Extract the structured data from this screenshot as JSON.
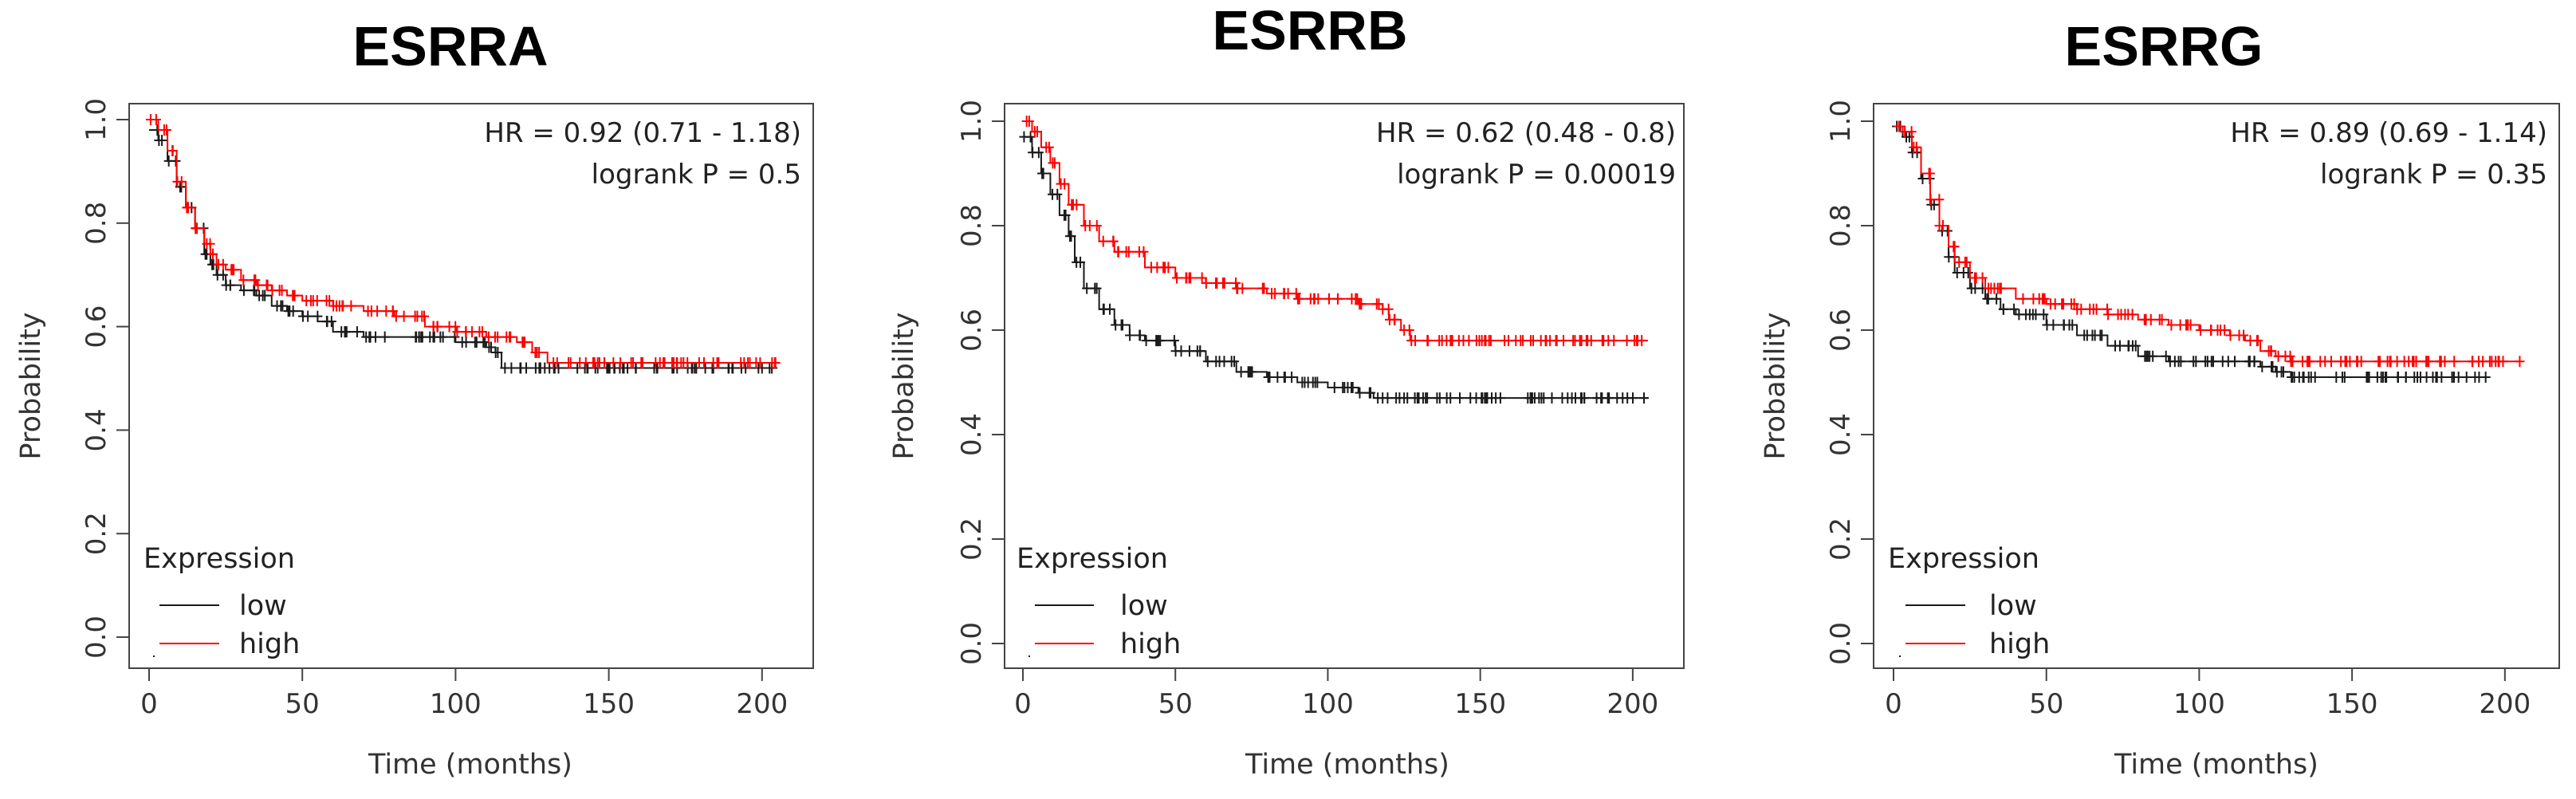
{
  "chart_data": [
    {
      "type": "line",
      "title": "ESRRA",
      "xlabel": "Time (months)",
      "ylabel": "Probability",
      "xlim": [
        0,
        205
      ],
      "ylim": [
        0,
        1.0
      ],
      "xticks": [
        "0",
        "50",
        "100",
        "150",
        "200"
      ],
      "yticks": [
        "0.0",
        "0.2",
        "0.4",
        "0.6",
        "0.8",
        "1.0"
      ],
      "annotations": [
        "HR = 0.92 (0.71 - 1.18)",
        "logrank P = 0.5"
      ],
      "legend": {
        "title": "Expression",
        "position": "bottom-left",
        "entries": [
          "low",
          "high"
        ]
      },
      "series": [
        {
          "name": "low",
          "color": "#1a1a1a",
          "x": [
            0,
            3,
            6,
            9,
            12,
            15,
            18,
            20,
            22,
            25,
            30,
            35,
            40,
            45,
            50,
            55,
            60,
            70,
            80,
            90,
            100,
            110,
            113,
            115,
            130,
            150,
            170,
            190,
            205
          ],
          "y": [
            0.98,
            0.96,
            0.92,
            0.87,
            0.83,
            0.79,
            0.74,
            0.72,
            0.7,
            0.68,
            0.67,
            0.66,
            0.64,
            0.63,
            0.62,
            0.61,
            0.59,
            0.58,
            0.58,
            0.58,
            0.57,
            0.56,
            0.55,
            0.52,
            0.52,
            0.52,
            0.52,
            0.52,
            0.52
          ]
        },
        {
          "name": "high",
          "color": "#ff0000",
          "x": [
            0,
            3,
            6,
            9,
            12,
            15,
            18,
            20,
            22,
            25,
            30,
            35,
            40,
            45,
            50,
            60,
            70,
            80,
            90,
            100,
            110,
            120,
            125,
            130,
            150,
            170,
            190,
            205
          ],
          "y": [
            1.0,
            0.98,
            0.94,
            0.88,
            0.83,
            0.79,
            0.76,
            0.74,
            0.72,
            0.71,
            0.69,
            0.68,
            0.67,
            0.66,
            0.65,
            0.64,
            0.63,
            0.62,
            0.6,
            0.59,
            0.58,
            0.57,
            0.55,
            0.53,
            0.53,
            0.53,
            0.53,
            0.53
          ]
        }
      ]
    },
    {
      "type": "line",
      "title": "ESRRB",
      "xlabel": "Time (months)",
      "ylabel": "Probability",
      "xlim": [
        0,
        205
      ],
      "ylim": [
        0,
        1.0
      ],
      "xticks": [
        "0",
        "50",
        "100",
        "150",
        "200"
      ],
      "yticks": [
        "0.0",
        "0.2",
        "0.4",
        "0.6",
        "0.8",
        "1.0"
      ],
      "annotations": [
        "HR = 0.62 (0.48 - 0.8)",
        "logrank P = 0.00019"
      ],
      "legend": {
        "title": "Expression",
        "position": "bottom-left",
        "entries": [
          "low",
          "high"
        ]
      },
      "series": [
        {
          "name": "low",
          "color": "#1a1a1a",
          "x": [
            0,
            3,
            6,
            9,
            12,
            15,
            17,
            20,
            25,
            30,
            35,
            40,
            50,
            60,
            70,
            80,
            90,
            100,
            110,
            115,
            120,
            140,
            160,
            180,
            205
          ],
          "y": [
            0.97,
            0.94,
            0.9,
            0.86,
            0.82,
            0.78,
            0.73,
            0.68,
            0.64,
            0.61,
            0.59,
            0.58,
            0.56,
            0.54,
            0.52,
            0.51,
            0.5,
            0.49,
            0.48,
            0.47,
            0.47,
            0.47,
            0.47,
            0.47,
            0.47
          ]
        },
        {
          "name": "high",
          "color": "#ff0000",
          "x": [
            0,
            3,
            6,
            9,
            12,
            15,
            20,
            25,
            30,
            40,
            50,
            60,
            70,
            80,
            90,
            100,
            110,
            115,
            118,
            120,
            124,
            127,
            130,
            150,
            170,
            190,
            205
          ],
          "y": [
            1.0,
            0.98,
            0.95,
            0.92,
            0.88,
            0.84,
            0.8,
            0.77,
            0.75,
            0.72,
            0.7,
            0.69,
            0.68,
            0.67,
            0.66,
            0.66,
            0.65,
            0.65,
            0.64,
            0.62,
            0.6,
            0.58,
            0.58,
            0.58,
            0.58,
            0.58,
            0.58
          ]
        }
      ]
    },
    {
      "type": "line",
      "title": "ESRRG",
      "xlabel": "Time (months)",
      "ylabel": "Probability",
      "xlim": [
        0,
        205
      ],
      "ylim": [
        0,
        1.0
      ],
      "xticks": [
        "0",
        "50",
        "100",
        "150",
        "200"
      ],
      "yticks": [
        "0.0",
        "0.2",
        "0.4",
        "0.6",
        "0.8",
        "1.0"
      ],
      "annotations": [
        "HR = 0.89 (0.69 - 1.14)",
        "logrank P = 0.35"
      ],
      "legend": {
        "title": "Expression",
        "position": "bottom-left",
        "entries": [
          "low",
          "high"
        ]
      },
      "series": [
        {
          "name": "low",
          "color": "#1a1a1a",
          "x": [
            0,
            3,
            6,
            9,
            12,
            15,
            18,
            20,
            25,
            30,
            35,
            40,
            50,
            60,
            70,
            80,
            90,
            100,
            110,
            120,
            125,
            130,
            150,
            170,
            195
          ],
          "y": [
            0.99,
            0.97,
            0.94,
            0.89,
            0.84,
            0.79,
            0.74,
            0.71,
            0.68,
            0.66,
            0.64,
            0.63,
            0.61,
            0.59,
            0.57,
            0.55,
            0.54,
            0.54,
            0.54,
            0.53,
            0.52,
            0.51,
            0.51,
            0.51,
            0.51
          ]
        },
        {
          "name": "high",
          "color": "#ff0000",
          "x": [
            0,
            3,
            6,
            9,
            12,
            15,
            18,
            20,
            25,
            30,
            40,
            50,
            60,
            70,
            80,
            90,
            100,
            110,
            115,
            120,
            125,
            130,
            150,
            170,
            190,
            205
          ],
          "y": [
            0.99,
            0.98,
            0.95,
            0.9,
            0.85,
            0.8,
            0.76,
            0.73,
            0.7,
            0.68,
            0.66,
            0.65,
            0.64,
            0.63,
            0.62,
            0.61,
            0.6,
            0.59,
            0.58,
            0.56,
            0.55,
            0.54,
            0.54,
            0.54,
            0.54,
            0.54
          ]
        }
      ]
    }
  ]
}
